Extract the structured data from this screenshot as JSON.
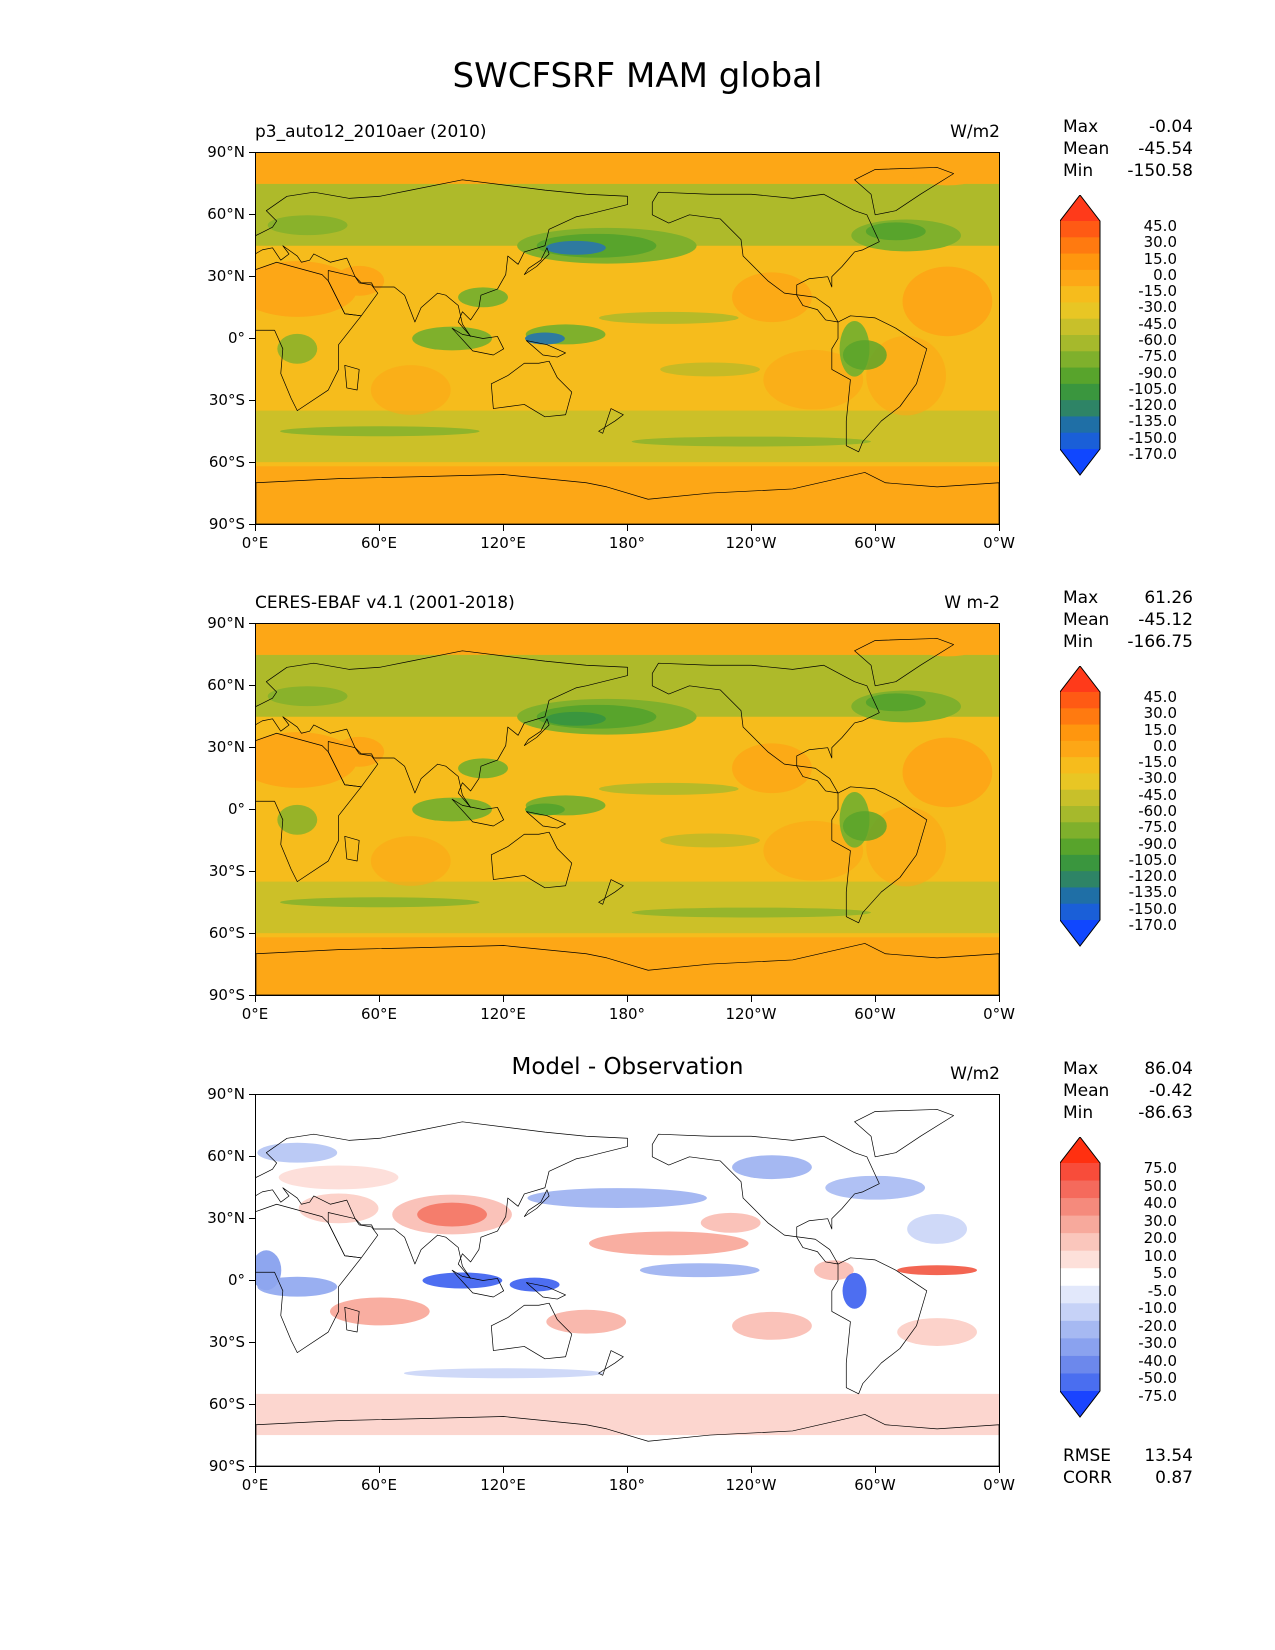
{
  "title": "SWCFSRF MAM global",
  "panels": [
    {
      "left_title": "p3_auto12_2010aer (2010)",
      "center_title": "",
      "units": "W/m2",
      "stats": {
        "max_label": "Max",
        "max": "-0.04",
        "mean_label": "Mean",
        "mean": "-45.54",
        "min_label": "Min",
        "min": "-150.58"
      },
      "colorbar": {
        "labels": [
          "45.0",
          "30.0",
          "15.0",
          "0.0",
          "-15.0",
          "-30.0",
          "-45.0",
          "-60.0",
          "-75.0",
          "-90.0",
          "-105.0",
          "-120.0",
          "-135.0",
          "-150.0",
          "-170.0"
        ],
        "colors": [
          "#ff3a1a",
          "#ff5a14",
          "#ff7a10",
          "#ff960e",
          "#fda716",
          "#f6bc1c",
          "#e8c624",
          "#c8c02a",
          "#a6b92c",
          "#7fb02c",
          "#58a42c",
          "#3a963e",
          "#2e8466",
          "#1f6fa6",
          "#1a5fd8",
          "#1047ff"
        ]
      },
      "type": "model"
    },
    {
      "left_title": "CERES-EBAF v4.1 (2001-2018)",
      "center_title": "",
      "units": "W m-2",
      "stats": {
        "max_label": "Max",
        "max": "61.26",
        "mean_label": "Mean",
        "mean": "-45.12",
        "min_label": "Min",
        "min": "-166.75"
      },
      "colorbar": {
        "labels": [
          "45.0",
          "30.0",
          "15.0",
          "0.0",
          "-15.0",
          "-30.0",
          "-45.0",
          "-60.0",
          "-75.0",
          "-90.0",
          "-105.0",
          "-120.0",
          "-135.0",
          "-150.0",
          "-170.0"
        ],
        "colors": [
          "#ff3a1a",
          "#ff5a14",
          "#ff7a10",
          "#ff960e",
          "#fda716",
          "#f6bc1c",
          "#e8c624",
          "#c8c02a",
          "#a6b92c",
          "#7fb02c",
          "#58a42c",
          "#3a963e",
          "#2e8466",
          "#1f6fa6",
          "#1a5fd8",
          "#1047ff"
        ]
      },
      "type": "obs"
    },
    {
      "left_title": "",
      "center_title": "Model - Observation",
      "units": "W/m2",
      "stats": {
        "max_label": "Max",
        "max": "86.04",
        "mean_label": "Mean",
        "mean": "-0.42",
        "min_label": "Min",
        "min": "-86.63"
      },
      "colorbar": {
        "labels": [
          "75.0",
          "50.0",
          "40.0",
          "30.0",
          "20.0",
          "10.0",
          "5.0",
          "-5.0",
          "-10.0",
          "-20.0",
          "-30.0",
          "-40.0",
          "-50.0",
          "-75.0"
        ],
        "colors": [
          "#ff3010",
          "#f84c3a",
          "#f56a5c",
          "#f58a7c",
          "#f7a99c",
          "#fac6bc",
          "#fde0da",
          "#ffffff",
          "#e2e8fb",
          "#c6d2f7",
          "#a6b9f2",
          "#8aa2ef",
          "#6c88ec",
          "#4a6ef0",
          "#1a44ff"
        ]
      },
      "type": "diff"
    }
  ],
  "axes": {
    "y_ticks": [
      "90°N",
      "60°N",
      "30°N",
      "0°",
      "30°S",
      "60°S",
      "90°S"
    ],
    "x_ticks": [
      "0°E",
      "60°E",
      "120°E",
      "180°",
      "120°W",
      "60°W",
      "0°W"
    ]
  },
  "diff_extra": {
    "rmse_label": "RMSE",
    "rmse": "13.54",
    "corr_label": "CORR",
    "corr": "0.87"
  }
}
